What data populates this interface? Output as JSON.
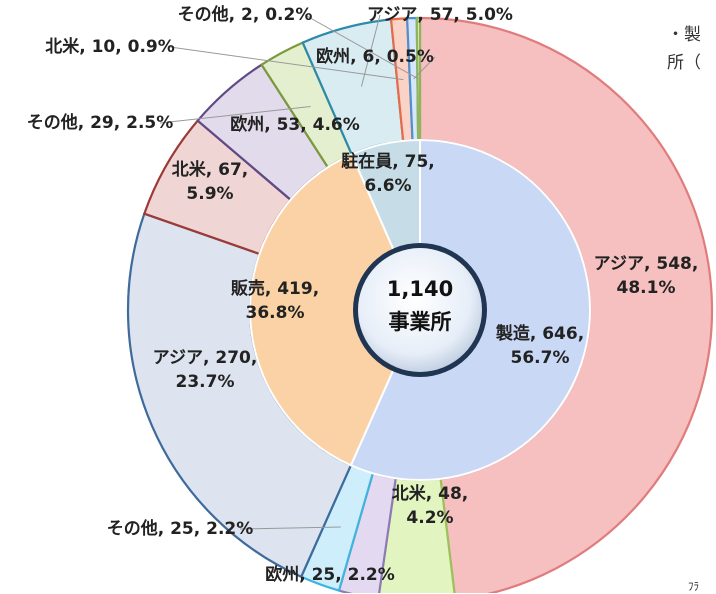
{
  "side_note": {
    "line1": "・製",
    "line2": "所（"
  },
  "footer_note": "ﾌﾗ",
  "chart_data": {
    "type": "pie",
    "variant": "two-level donut",
    "center": {
      "value": "1,140",
      "label": "事業所"
    },
    "total": 1140,
    "inner_ring": [
      {
        "name": "製造",
        "value": 646,
        "percent": "56.7%",
        "label": "製造, 646,\n56.7%",
        "color": "#c9d9f5"
      },
      {
        "name": "販売",
        "value": 419,
        "percent": "36.8%",
        "label": "販売, 419,\n36.8%",
        "color": "#fbd2a6"
      },
      {
        "name": "駐在員",
        "value": 75,
        "percent": "6.6%",
        "label": "駐在員, 75,\n6.6%",
        "color": "#c6dde7"
      }
    ],
    "outer_ring": [
      {
        "parent": "製造",
        "name": "アジア",
        "value": 548,
        "percent": "48.1%",
        "label": "アジア, 548,\n48.1%",
        "color": "#f6c0c0",
        "border": "#e07c7c"
      },
      {
        "parent": "製造",
        "name": "北米",
        "value": 48,
        "percent": "4.2%",
        "label": "北米, 48,\n4.2%",
        "color": "#e2f4c0",
        "border": "#9bc25a"
      },
      {
        "parent": "製造",
        "name": "欧州",
        "value": 25,
        "percent": "2.2%",
        "label": "欧州, 25, 2.2%",
        "color": "#e3daf1",
        "border": "#8e7ab5"
      },
      {
        "parent": "製造",
        "name": "その他",
        "value": 25,
        "percent": "2.2%",
        "label": "その他, 25, 2.2%",
        "color": "#cdeefa",
        "border": "#3fb4dc"
      },
      {
        "parent": "販売",
        "name": "アジア",
        "value": 270,
        "percent": "23.7%",
        "label": "アジア, 270,\n23.7%",
        "color": "#dde4ef",
        "border": "#3e6a9c"
      },
      {
        "parent": "販売",
        "name": "北米",
        "value": 67,
        "percent": "5.9%",
        "label": "北米, 67,\n5.9%",
        "color": "#efd6d4",
        "border": "#9b3a36"
      },
      {
        "parent": "販売",
        "name": "その他",
        "value": 29,
        "percent": "2.5%",
        "label": "その他, 29, 2.5%",
        "color": "#e4efcf",
        "border": "#7b9a3c"
      },
      {
        "parent": "販売",
        "name": "欧州",
        "value": 53,
        "percent": "4.6%",
        "label": "欧州, 53, 4.6%",
        "color": "#e2dbec",
        "border": "#5f4a86"
      },
      {
        "parent": "駐在員",
        "name": "北米",
        "value": 10,
        "percent": "0.9%",
        "label": "北米, 10, 0.9%",
        "color": "#fad2c6",
        "border": "#e66b4a"
      },
      {
        "parent": "駐在員",
        "name": "欧州",
        "value": 6,
        "percent": "0.5%",
        "label": "欧州, 6, 0.5%",
        "color": "#d5e7f8",
        "border": "#4f8fd4"
      },
      {
        "parent": "駐在員",
        "name": "その他",
        "value": 2,
        "percent": "0.2%",
        "label": "その他, 2, 0.2%",
        "color": "#e2f0c9",
        "border": "#8fb45c"
      },
      {
        "parent": "駐在員",
        "name": "アジア",
        "value": 57,
        "percent": "5.0%",
        "label": "アジア, 57, 5.0%",
        "color": "#d9ecf2",
        "border": "#2e8aa8"
      }
    ],
    "legend": "none"
  }
}
